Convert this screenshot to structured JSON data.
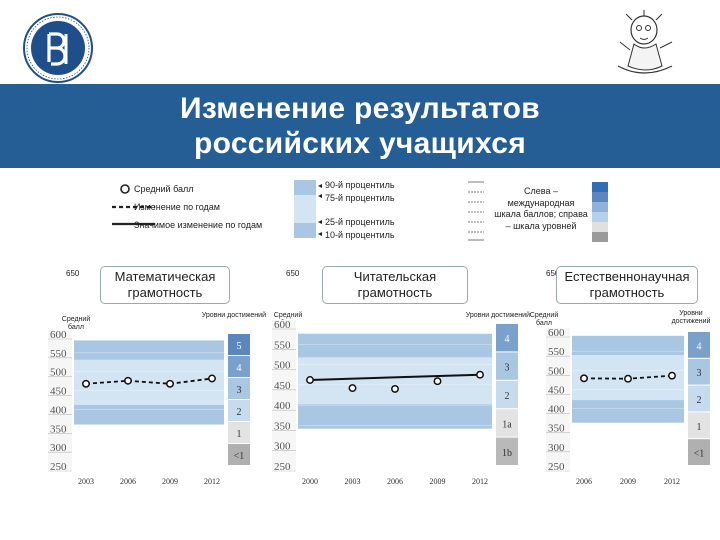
{
  "header": {
    "title_line1": "Изменение результатов",
    "title_line2": "российских учащихся"
  },
  "logo": {
    "name": "hse-logo"
  },
  "legend": {
    "mean": "Средний балл",
    "change": "Изменение по годам",
    "significant": "Значимое изменение по годам",
    "p90": "90-й процентиль",
    "p75": "75-й процентиль",
    "p25": "25-й процентиль",
    "p10": "10-й процентиль",
    "scales_note": "Слева – международная шкала баллов; справа – шкала уровней"
  },
  "colors": {
    "title_band": "#245e94",
    "outer_band": "#a9c6e3",
    "inner_band": "#d3e4f3",
    "level_dark": "#5b86be",
    "level_light": "#cfe0f1",
    "level_grey": "#b0b0b0"
  },
  "chart_data": [
    {
      "type": "line",
      "title": "Математическая грамотность",
      "ylabel": "Средний балл",
      "levels_label": "Уровни достижений",
      "ymax_label": "650",
      "ylim": [
        250,
        600
      ],
      "yticks": [
        "600",
        "550",
        "500",
        "450",
        "400",
        "350",
        "300",
        "250"
      ],
      "x": [
        "2003",
        "2006",
        "2009",
        "2012"
      ],
      "mean": [
        468,
        476,
        468,
        482
      ],
      "p10": 360,
      "p25": 412,
      "p75": 532,
      "p90": 583,
      "levels": [
        "5",
        "4",
        "3",
        "2",
        "1",
        "<1"
      ],
      "significant": false
    },
    {
      "type": "line",
      "title": "Читательская грамотность",
      "ylabel": "Средний балл",
      "levels_label": "Уровни достижений",
      "ymax_label": "650",
      "ylim": [
        250,
        600
      ],
      "yticks": [
        "600",
        "550",
        "500",
        "450",
        "400",
        "350",
        "300",
        "250"
      ],
      "x": [
        "2000",
        "2003",
        "2006",
        "2009",
        "2012"
      ],
      "mean": [
        462,
        442,
        440,
        459,
        475
      ],
      "p10": 342,
      "p25": 402,
      "p75": 518,
      "p90": 576,
      "levels": [
        "4",
        "3",
        "2",
        "1a",
        "1b"
      ],
      "significant": true
    },
    {
      "type": "line",
      "title": "Естественнонаучная грамотность",
      "ylabel": "Средний балл",
      "levels_label": "Уровни достижений",
      "ymax_label": "650",
      "ylim": [
        250,
        600
      ],
      "yticks": [
        "600",
        "550",
        "500",
        "450",
        "400",
        "350",
        "300",
        "250"
      ],
      "x": [
        "2006",
        "2009",
        "2012"
      ],
      "mean": [
        479,
        478,
        486
      ],
      "p10": 363,
      "p25": 422,
      "p75": 540,
      "p90": 590,
      "levels": [
        "4",
        "3",
        "2",
        "1",
        "<1"
      ],
      "significant": false
    }
  ]
}
